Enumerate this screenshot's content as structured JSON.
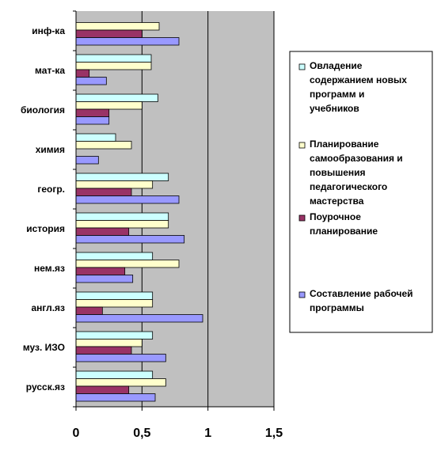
{
  "chart_data": {
    "type": "bar",
    "orientation": "horizontal",
    "categories": [
      "инф-ка",
      "мат-ка",
      "биология",
      "химия",
      "геогр.",
      "история",
      "нем.яз",
      "англ.яз",
      "муз. ИЗО",
      "русск.яз"
    ],
    "series": [
      {
        "name": "Овладение содержанием новых программ и учебников",
        "color": "#ccffff",
        "values": [
          0.0,
          0.57,
          0.62,
          0.3,
          0.7,
          0.7,
          0.58,
          0.58,
          0.58,
          0.58
        ]
      },
      {
        "name": "Планирование самообразования и повышения педагогического мастерства",
        "color": "#ffffcc",
        "values": [
          0.63,
          0.57,
          0.5,
          0.42,
          0.58,
          0.7,
          0.78,
          0.58,
          0.5,
          0.68
        ]
      },
      {
        "name": "Поурочное планирование",
        "color": "#993366",
        "values": [
          0.5,
          0.1,
          0.25,
          0.0,
          0.42,
          0.4,
          0.37,
          0.2,
          0.42,
          0.4
        ]
      },
      {
        "name": "Составление рабочей программы",
        "color": "#9999ff",
        "values": [
          0.78,
          0.23,
          0.25,
          0.17,
          0.78,
          0.82,
          0.43,
          0.96,
          0.68,
          0.6
        ]
      }
    ],
    "xlim": [
      0,
      1.5
    ],
    "xticks": [
      "0",
      "0,5",
      "1",
      "1,5"
    ],
    "title": "",
    "xlabel": "",
    "ylabel": "",
    "grid": "vertical major gridlines",
    "plot_background": "#c0c0c0",
    "legend_position": "right"
  }
}
